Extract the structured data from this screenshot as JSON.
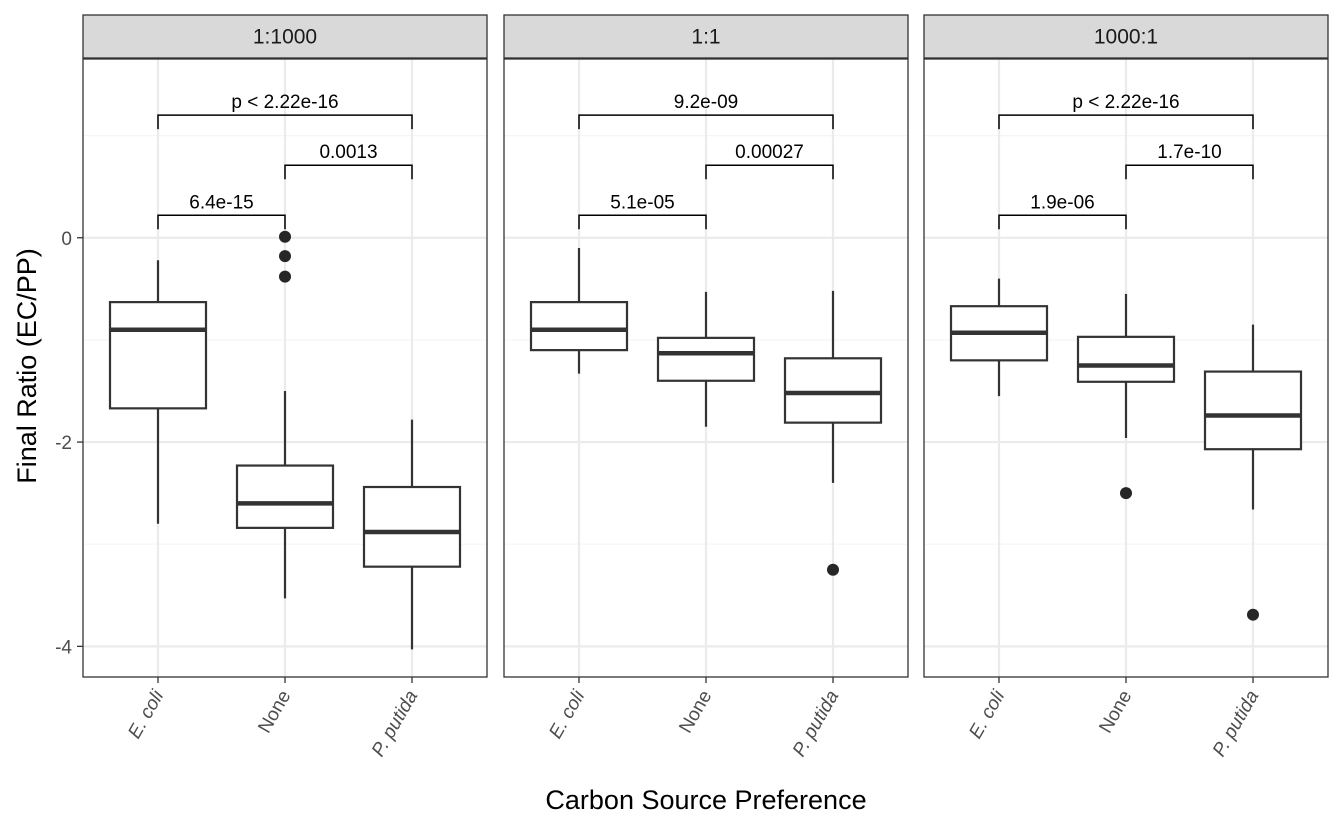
{
  "chart_data": {
    "type": "boxplot",
    "xlabel": "Carbon Source Preference",
    "ylabel": "Final Ratio (EC/PP)",
    "ylim": [
      -4.3,
      1.75
    ],
    "yticks": [
      -4,
      -2,
      0
    ],
    "yticklabels": [
      "-4",
      "-2",
      "0"
    ],
    "categories": [
      "E. coli",
      "None",
      "P. putida"
    ],
    "grid": "on",
    "colors": {
      "box": "#333333",
      "panel_border": "#333333",
      "strip_fill": "#d9d9d9",
      "grid_major": "#ebebeb",
      "grid_minor": "#f5f5f5",
      "point": "#262626",
      "tick_label": "#4d4d4d"
    },
    "panels": [
      {
        "label": "1:1000",
        "boxes": [
          {
            "category": "E. coli",
            "min": -2.8,
            "q1": -1.67,
            "median": -0.9,
            "q3": -0.63,
            "max": -0.22,
            "outliers": []
          },
          {
            "category": "None",
            "min": -3.53,
            "q1": -2.84,
            "median": -2.6,
            "q3": -2.23,
            "max": -1.5,
            "outliers": [
              0.01,
              -0.18,
              -0.38
            ]
          },
          {
            "category": "P. putida",
            "min": -4.03,
            "q1": -3.22,
            "median": -2.88,
            "q3": -2.44,
            "max": -1.78,
            "outliers": []
          }
        ],
        "comparisons": [
          {
            "from": "E. coli",
            "to": "None",
            "label": "6.4e-15",
            "y": 0.22
          },
          {
            "from": "None",
            "to": "P. putida",
            "label": "0.0013",
            "y": 0.71
          },
          {
            "from": "E. coli",
            "to": "P. putida",
            "label": "p < 2.22e-16",
            "y": 1.2
          }
        ]
      },
      {
        "label": "1:1",
        "boxes": [
          {
            "category": "E. coli",
            "min": -1.33,
            "q1": -1.1,
            "median": -0.9,
            "q3": -0.63,
            "max": -0.1,
            "outliers": []
          },
          {
            "category": "None",
            "min": -1.85,
            "q1": -1.4,
            "median": -1.13,
            "q3": -0.98,
            "max": -0.53,
            "outliers": []
          },
          {
            "category": "P. putida",
            "min": -2.4,
            "q1": -1.81,
            "median": -1.52,
            "q3": -1.18,
            "max": -0.52,
            "outliers": [
              -3.25
            ]
          }
        ],
        "comparisons": [
          {
            "from": "E. coli",
            "to": "None",
            "label": "5.1e-05",
            "y": 0.22
          },
          {
            "from": "None",
            "to": "P. putida",
            "label": "0.00027",
            "y": 0.71
          },
          {
            "from": "E. coli",
            "to": "P. putida",
            "label": "9.2e-09",
            "y": 1.2
          }
        ]
      },
      {
        "label": "1000:1",
        "boxes": [
          {
            "category": "E. coli",
            "min": -1.55,
            "q1": -1.2,
            "median": -0.93,
            "q3": -0.67,
            "max": -0.4,
            "outliers": []
          },
          {
            "category": "None",
            "min": -1.96,
            "q1": -1.41,
            "median": -1.25,
            "q3": -0.97,
            "max": -0.55,
            "outliers": [
              -2.5
            ]
          },
          {
            "category": "P. putida",
            "min": -2.66,
            "q1": -2.07,
            "median": -1.74,
            "q3": -1.31,
            "max": -0.85,
            "outliers": [
              -3.69
            ]
          }
        ],
        "comparisons": [
          {
            "from": "E. coli",
            "to": "None",
            "label": "1.9e-06",
            "y": 0.22
          },
          {
            "from": "None",
            "to": "P. putida",
            "label": "1.7e-10",
            "y": 0.71
          },
          {
            "from": "E. coli",
            "to": "P. putida",
            "label": "p < 2.22e-16",
            "y": 1.2
          }
        ]
      }
    ]
  }
}
